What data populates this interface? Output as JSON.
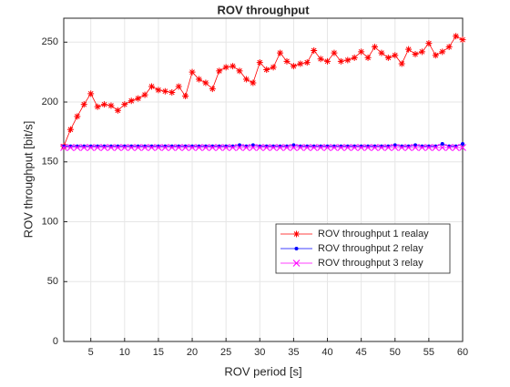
{
  "chart_data": {
    "type": "line",
    "title": "ROV throughput",
    "xlabel": "ROV period [s]",
    "ylabel": "ROV throughput [bit/s]",
    "x": [
      1,
      2,
      3,
      4,
      5,
      6,
      7,
      8,
      9,
      10,
      11,
      12,
      13,
      14,
      15,
      16,
      17,
      18,
      19,
      20,
      21,
      22,
      23,
      24,
      25,
      26,
      27,
      28,
      29,
      30,
      31,
      32,
      33,
      34,
      35,
      36,
      37,
      38,
      39,
      40,
      41,
      42,
      43,
      44,
      45,
      46,
      47,
      48,
      49,
      50,
      51,
      52,
      53,
      54,
      55,
      56,
      57,
      58,
      59,
      60
    ],
    "series": [
      {
        "name": "ROV throughput 1 realay",
        "color": "#ff0000",
        "marker": "*",
        "values": [
          163,
          177,
          188,
          198,
          207,
          196,
          198,
          197,
          193,
          198,
          201,
          203,
          206,
          213,
          210,
          209,
          208,
          213,
          205,
          225,
          219,
          216,
          211,
          226,
          229,
          230,
          226,
          219,
          216,
          233,
          227,
          229,
          241,
          234,
          230,
          232,
          233,
          243,
          236,
          234,
          241,
          234,
          235,
          237,
          242,
          237,
          246,
          241,
          237,
          239,
          232,
          244,
          240,
          242,
          249,
          239,
          242,
          246,
          255,
          252
        ]
      },
      {
        "name": "ROV throughput 2 relay",
        "color": "#0000ff",
        "marker": ".",
        "values": [
          163,
          163,
          163,
          163,
          163,
          163,
          163,
          163,
          163,
          163,
          163,
          163,
          163,
          163,
          163,
          163,
          163,
          163,
          163,
          163,
          163,
          163,
          163,
          163,
          163,
          163,
          164,
          163,
          164,
          163,
          163,
          163,
          163,
          163,
          164,
          163,
          163,
          163,
          163,
          163,
          163,
          163,
          163,
          163,
          163,
          163,
          163,
          163,
          163,
          164,
          163,
          163,
          164,
          163,
          163,
          163,
          165,
          163,
          163,
          165
        ]
      },
      {
        "name": "ROV throughput 3 relay",
        "color": "#ff00ff",
        "marker": "x",
        "values": [
          162,
          162,
          162,
          162,
          162,
          162,
          162,
          162,
          162,
          162,
          162,
          162,
          162,
          162,
          162,
          162,
          162,
          162,
          162,
          162,
          162,
          162,
          162,
          162,
          162,
          162,
          162,
          162,
          162,
          162,
          162,
          162,
          162,
          162,
          162,
          162,
          162,
          162,
          162,
          162,
          162,
          162,
          162,
          162,
          162,
          162,
          162,
          162,
          162,
          162,
          162,
          162,
          162,
          162,
          162,
          162,
          162,
          162,
          162,
          162
        ]
      }
    ],
    "xlim": [
      1,
      60
    ],
    "xticks": [
      5,
      10,
      15,
      20,
      25,
      30,
      35,
      40,
      45,
      50,
      55,
      60
    ],
    "ylim": [
      0,
      270
    ],
    "yticks": [
      0,
      50,
      100,
      150,
      200,
      250
    ],
    "grid": true,
    "legend": "southeast"
  }
}
